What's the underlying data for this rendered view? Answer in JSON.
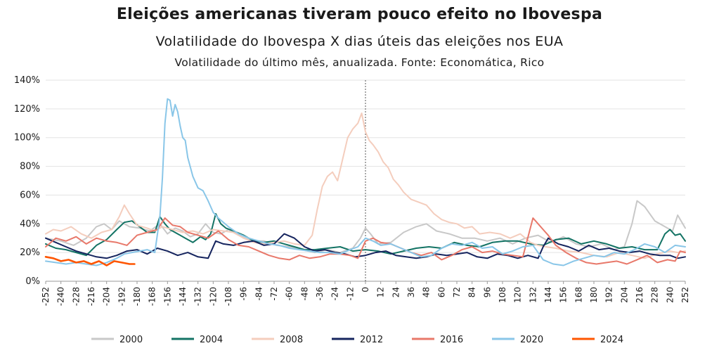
{
  "chart_data": {
    "type": "line",
    "title": "Eleições americanas tiveram pouco efeito no Ibovespa",
    "subtitle": "Volatilidade do Ibovespa X dias úteis das eleições nos EUA",
    "note": "Volatilidade do último mês, anualizada. Fonte: Economática, Rico",
    "xlabel": "",
    "ylabel": "",
    "xlim": [
      -252,
      252
    ],
    "ylim": [
      0,
      140
    ],
    "y_ticks": [
      "0%",
      "20%",
      "40%",
      "60%",
      "80%",
      "100%",
      "120%",
      "140%"
    ],
    "x_ticks": [
      "-252",
      "-240",
      "-228",
      "-216",
      "-204",
      "-192",
      "-180",
      "-168",
      "-156",
      "-144",
      "-132",
      "-120",
      "-108",
      "-96",
      "-84",
      "-72",
      "-60",
      "-48",
      "-36",
      "-24",
      "-12",
      "0",
      "12",
      "24",
      "36",
      "48",
      "60",
      "72",
      "84",
      "96",
      "108",
      "120",
      "132",
      "144",
      "156",
      "168",
      "180",
      "192",
      "204",
      "216",
      "228",
      "240",
      "252"
    ],
    "grid": "horizontal",
    "reference_line_x": 0,
    "legend_position": "bottom",
    "series": [
      {
        "name": "2000",
        "color": "#c8c8c8",
        "x": [
          -252,
          -240,
          -230,
          -220,
          -212,
          -206,
          -200,
          -194,
          -186,
          -178,
          -170,
          -162,
          -156,
          -150,
          -144,
          -138,
          -132,
          -126,
          -120,
          -114,
          -108,
          -100,
          -90,
          -80,
          -70,
          -60,
          -50,
          -40,
          -30,
          -20,
          -10,
          -4,
          0,
          4,
          10,
          20,
          30,
          40,
          48,
          56,
          66,
          76,
          86,
          96,
          106,
          116,
          126,
          136,
          146,
          156,
          166,
          176,
          186,
          196,
          204,
          210,
          214,
          220,
          228,
          236,
          242,
          246,
          252
        ],
        "values": [
          30,
          28,
          25,
          30,
          38,
          40,
          36,
          42,
          38,
          37,
          35,
          40,
          33,
          37,
          35,
          31,
          33,
          40,
          34,
          33,
          36,
          32,
          28,
          28,
          25,
          24,
          22,
          20,
          22,
          20,
          23,
          30,
          37,
          33,
          26,
          27,
          34,
          38,
          40,
          35,
          33,
          30,
          30,
          28,
          30,
          26,
          30,
          32,
          27,
          31,
          26,
          24,
          26,
          22,
          24,
          40,
          56,
          52,
          42,
          38,
          35,
          46,
          37
        ]
      },
      {
        "name": "2004",
        "color": "#137364",
        "x": [
          -252,
          -244,
          -236,
          -228,
          -220,
          -212,
          -204,
          -196,
          -190,
          -184,
          -178,
          -172,
          -166,
          -162,
          -158,
          -154,
          -148,
          -142,
          -136,
          -130,
          -126,
          -122,
          -118,
          -114,
          -110,
          -104,
          -96,
          -88,
          -80,
          -72,
          -64,
          -56,
          -48,
          -40,
          -30,
          -20,
          -10,
          0,
          10,
          20,
          30,
          40,
          50,
          60,
          70,
          80,
          90,
          100,
          110,
          120,
          130,
          140,
          150,
          160,
          170,
          180,
          190,
          200,
          210,
          220,
          230,
          236,
          240,
          244,
          248,
          252
        ],
        "values": [
          26,
          23,
          22,
          20,
          18,
          25,
          29,
          36,
          41,
          42,
          38,
          34,
          34,
          45,
          40,
          36,
          33,
          30,
          27,
          31,
          29,
          33,
          47,
          40,
          37,
          35,
          32,
          28,
          27,
          28,
          26,
          24,
          22,
          22,
          23,
          24,
          21,
          22,
          21,
          19,
          21,
          23,
          24,
          23,
          27,
          25,
          24,
          27,
          28,
          28,
          26,
          25,
          29,
          30,
          26,
          28,
          26,
          23,
          24,
          22,
          22,
          33,
          36,
          32,
          33,
          28
        ]
      },
      {
        "name": "2008",
        "color": "#f4cdbd",
        "x": [
          -252,
          -246,
          -240,
          -232,
          -224,
          -216,
          -208,
          -200,
          -194,
          -190,
          -186,
          -180,
          -172,
          -166,
          -160,
          -152,
          -144,
          -136,
          -128,
          -120,
          -112,
          -104,
          -96,
          -88,
          -80,
          -72,
          -64,
          -56,
          -48,
          -42,
          -38,
          -34,
          -30,
          -26,
          -22,
          -18,
          -14,
          -10,
          -6,
          -3,
          0,
          3,
          6,
          10,
          14,
          18,
          22,
          26,
          30,
          36,
          42,
          48,
          54,
          60,
          66,
          72,
          78,
          84,
          90,
          98,
          106,
          114,
          122,
          130,
          136,
          142,
          150,
          160,
          170,
          180,
          190,
          200,
          210,
          220,
          230,
          240,
          246,
          252
        ],
        "values": [
          33,
          36,
          35,
          38,
          33,
          30,
          34,
          36,
          45,
          53,
          47,
          39,
          37,
          35,
          38,
          36,
          34,
          35,
          33,
          36,
          35,
          34,
          30,
          27,
          26,
          27,
          28,
          26,
          25,
          32,
          50,
          66,
          73,
          76,
          70,
          85,
          100,
          106,
          110,
          117,
          104,
          98,
          95,
          90,
          83,
          79,
          71,
          67,
          62,
          57,
          55,
          53,
          47,
          43,
          41,
          40,
          37,
          38,
          33,
          34,
          33,
          30,
          33,
          27,
          25,
          24,
          23,
          21,
          20,
          18,
          17,
          20,
          18,
          16,
          19,
          21,
          20,
          21
        ]
      },
      {
        "name": "2012",
        "color": "#15245e",
        "x": [
          -252,
          -244,
          -236,
          -228,
          -220,
          -212,
          -204,
          -196,
          -188,
          -180,
          -172,
          -164,
          -156,
          -148,
          -140,
          -132,
          -124,
          -118,
          -112,
          -104,
          -96,
          -88,
          -80,
          -72,
          -64,
          -56,
          -48,
          -40,
          -32,
          -24,
          -16,
          -8,
          0,
          8,
          16,
          24,
          32,
          40,
          48,
          56,
          64,
          72,
          80,
          88,
          96,
          104,
          112,
          120,
          128,
          136,
          140,
          144,
          148,
          152,
          160,
          168,
          176,
          184,
          192,
          200,
          208,
          216,
          224,
          232,
          240,
          246,
          252
        ],
        "values": [
          30,
          27,
          24,
          21,
          19,
          17,
          16,
          18,
          21,
          22,
          19,
          23,
          21,
          18,
          20,
          17,
          16,
          28,
          26,
          25,
          27,
          28,
          25,
          26,
          33,
          30,
          24,
          21,
          22,
          20,
          19,
          17,
          18,
          20,
          21,
          18,
          17,
          16,
          17,
          19,
          18,
          19,
          20,
          17,
          16,
          19,
          18,
          16,
          18,
          16,
          24,
          30,
          28,
          26,
          24,
          21,
          25,
          22,
          23,
          21,
          20,
          21,
          19,
          18,
          18,
          16,
          17
        ]
      },
      {
        "name": "2016",
        "color": "#e8786a",
        "x": [
          -252,
          -244,
          -236,
          -228,
          -220,
          -212,
          -204,
          -196,
          -188,
          -180,
          -172,
          -164,
          -158,
          -152,
          -146,
          -140,
          -132,
          -124,
          -116,
          -108,
          -100,
          -92,
          -84,
          -76,
          -68,
          -60,
          -52,
          -44,
          -36,
          -28,
          -20,
          -12,
          -6,
          0,
          6,
          12,
          20,
          28,
          36,
          44,
          52,
          60,
          68,
          76,
          84,
          92,
          100,
          108,
          116,
          124,
          132,
          136,
          140,
          144,
          150,
          158,
          166,
          174,
          182,
          190,
          198,
          206,
          214,
          222,
          230,
          238,
          244,
          248,
          252
        ],
        "values": [
          24,
          30,
          28,
          31,
          26,
          30,
          28,
          27,
          25,
          32,
          34,
          36,
          44,
          39,
          38,
          34,
          32,
          30,
          35,
          29,
          25,
          24,
          21,
          18,
          16,
          15,
          18,
          16,
          17,
          19,
          19,
          18,
          16,
          28,
          30,
          27,
          26,
          23,
          20,
          18,
          20,
          15,
          18,
          22,
          24,
          20,
          21,
          19,
          18,
          17,
          44,
          40,
          36,
          32,
          25,
          20,
          16,
          13,
          12,
          13,
          14,
          12,
          15,
          18,
          13,
          15,
          14,
          21,
          20
        ]
      },
      {
        "name": "2020",
        "color": "#89c6e8",
        "x": [
          -252,
          -244,
          -236,
          -228,
          -220,
          -212,
          -204,
          -196,
          -190,
          -184,
          -178,
          -172,
          -166,
          -162,
          -160,
          -158,
          -156,
          -154,
          -152,
          -150,
          -148,
          -146,
          -144,
          -142,
          -140,
          -136,
          -132,
          -128,
          -124,
          -120,
          -116,
          -108,
          -100,
          -92,
          -84,
          -76,
          -68,
          -60,
          -52,
          -44,
          -36,
          -28,
          -20,
          -12,
          -6,
          0,
          6,
          12,
          20,
          28,
          36,
          44,
          52,
          60,
          68,
          76,
          84,
          92,
          100,
          108,
          116,
          124,
          132,
          140,
          148,
          156,
          164,
          172,
          180,
          188,
          196,
          204,
          212,
          220,
          228,
          236,
          244,
          252
        ],
        "values": [
          14,
          13,
          12,
          13,
          12,
          11,
          13,
          16,
          19,
          20,
          21,
          22,
          20,
          45,
          72,
          110,
          127,
          126,
          115,
          123,
          118,
          108,
          100,
          98,
          86,
          73,
          65,
          63,
          56,
          48,
          44,
          38,
          33,
          30,
          28,
          26,
          25,
          23,
          22,
          21,
          20,
          20,
          19,
          22,
          24,
          30,
          28,
          25,
          26,
          23,
          20,
          17,
          18,
          23,
          26,
          25,
          27,
          23,
          24,
          19,
          21,
          24,
          25,
          15,
          12,
          11,
          14,
          16,
          18,
          17,
          20,
          19,
          22,
          26,
          24,
          20,
          25,
          24
        ]
      },
      {
        "name": "2024",
        "color": "#fe5500",
        "x": [
          -252,
          -246,
          -240,
          -234,
          -228,
          -222,
          -216,
          -210,
          -204,
          -198,
          -192,
          -186,
          -182
        ],
        "values": [
          17,
          16,
          14,
          15,
          13,
          14,
          12,
          14,
          11,
          14,
          13,
          12,
          12
        ]
      }
    ]
  }
}
